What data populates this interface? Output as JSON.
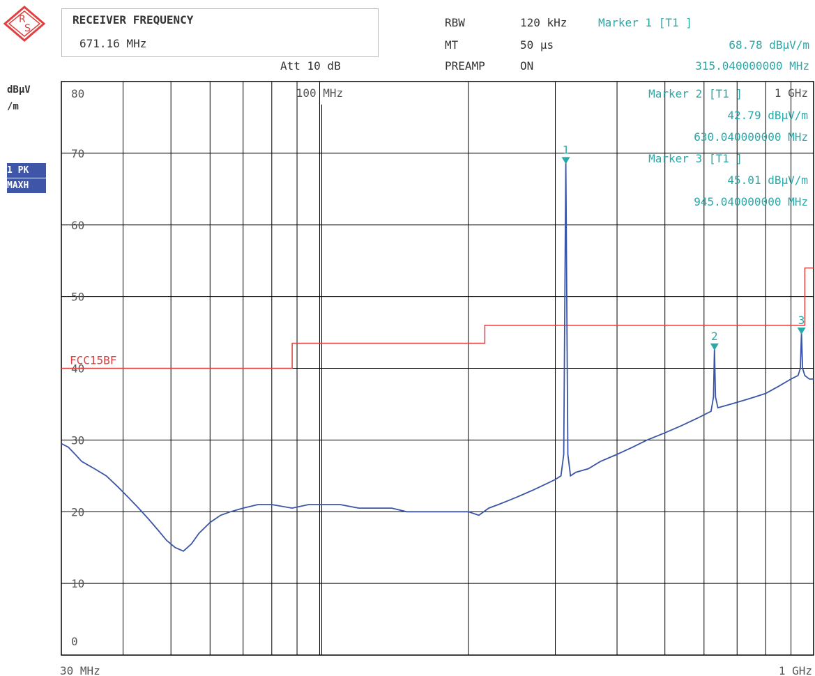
{
  "header": {
    "receiver_title": "RECEIVER FREQUENCY",
    "receiver_value": "671.16 MHz",
    "att": "Att 10 dB",
    "rbw_label": "RBW",
    "rbw_value": "120 kHz",
    "mt_label": "MT",
    "mt_value": "50 µs",
    "preamp_label": "PREAMP",
    "preamp_value": "ON",
    "marker1_title": "Marker 1 [T1 ]",
    "marker1_level": "68.78 dBµV/m",
    "marker1_freq": "315.040000000 MHz"
  },
  "side": {
    "unit_line1": "dBµV",
    "unit_line2": "/m",
    "trace_badge1": "1 PK",
    "trace_badge2": "MAXH"
  },
  "colors": {
    "trace": "#3a55a8",
    "limit": "#e04040",
    "marker": "#2aa8a8",
    "grid": "#000000",
    "logo": "#e04040"
  },
  "icons": {
    "logo": "rohde-schwarz-logo-icon"
  },
  "chart_data": {
    "type": "line",
    "x_scale": "log",
    "xlim_mhz": [
      30,
      1000
    ],
    "ylim": [
      0,
      80
    ],
    "yticks": [
      0,
      10,
      20,
      30,
      40,
      50,
      60,
      70,
      80
    ],
    "x_start_label": "30 MHz",
    "x_end_label": "1 GHz",
    "x_inner_labels": [
      "100 MHz",
      "1 GHz"
    ],
    "legend_markers": [
      {
        "title": "Marker 2 [T1 ]",
        "level": "42.79 dBµV/m",
        "freq": "630.040000000 MHz"
      },
      {
        "title": "Marker 3 [T1 ]",
        "level": "45.01 dBµV/m",
        "freq": "945.040000000 MHz"
      }
    ],
    "limit_line": {
      "name": "FCC15BF",
      "steps": [
        {
          "from_mhz": 30,
          "to_mhz": 88,
          "level": 40
        },
        {
          "from_mhz": 88,
          "to_mhz": 216,
          "level": 43.5
        },
        {
          "from_mhz": 216,
          "to_mhz": 960,
          "level": 46
        },
        {
          "from_mhz": 960,
          "to_mhz": 1000,
          "level": 54
        }
      ]
    },
    "markers": [
      {
        "id": "1",
        "freq_mhz": 315.04,
        "level": 68.78
      },
      {
        "id": "2",
        "freq_mhz": 630.04,
        "level": 42.79
      },
      {
        "id": "3",
        "freq_mhz": 945.04,
        "level": 45.01
      }
    ],
    "series": [
      {
        "points": [
          [
            30,
            29.5
          ],
          [
            31,
            29
          ],
          [
            32,
            28
          ],
          [
            33,
            27
          ],
          [
            35,
            26
          ],
          [
            37,
            25
          ],
          [
            39,
            23.5
          ],
          [
            41,
            22
          ],
          [
            43,
            20.5
          ],
          [
            45,
            19
          ],
          [
            47,
            17.5
          ],
          [
            49,
            16
          ],
          [
            51,
            15
          ],
          [
            53,
            14.5
          ],
          [
            55,
            15.5
          ],
          [
            57,
            17
          ],
          [
            60,
            18.5
          ],
          [
            63,
            19.5
          ],
          [
            66,
            20
          ],
          [
            70,
            20.5
          ],
          [
            75,
            21
          ],
          [
            80,
            21
          ],
          [
            88,
            20.5
          ],
          [
            95,
            21
          ],
          [
            100,
            21
          ],
          [
            110,
            21
          ],
          [
            120,
            20.5
          ],
          [
            130,
            20.5
          ],
          [
            140,
            20.5
          ],
          [
            150,
            20
          ],
          [
            160,
            20
          ],
          [
            170,
            20
          ],
          [
            180,
            20
          ],
          [
            190,
            20
          ],
          [
            200,
            20
          ],
          [
            210,
            19.5
          ],
          [
            220,
            20.5
          ],
          [
            230,
            21
          ],
          [
            240,
            21.5
          ],
          [
            250,
            22
          ],
          [
            260,
            22.5
          ],
          [
            270,
            23
          ],
          [
            280,
            23.5
          ],
          [
            290,
            24
          ],
          [
            300,
            24.5
          ],
          [
            308,
            25
          ],
          [
            312,
            28
          ],
          [
            315.04,
            68.78
          ],
          [
            318,
            28
          ],
          [
            322,
            25
          ],
          [
            330,
            25.5
          ],
          [
            350,
            26
          ],
          [
            370,
            27
          ],
          [
            400,
            28
          ],
          [
            430,
            29
          ],
          [
            460,
            30
          ],
          [
            500,
            31
          ],
          [
            540,
            32
          ],
          [
            580,
            33
          ],
          [
            620,
            34
          ],
          [
            627,
            36
          ],
          [
            630.04,
            42.79
          ],
          [
            633,
            36
          ],
          [
            640,
            34.5
          ],
          [
            680,
            35
          ],
          [
            720,
            35.5
          ],
          [
            760,
            36
          ],
          [
            800,
            36.5
          ],
          [
            850,
            37.5
          ],
          [
            900,
            38.5
          ],
          [
            930,
            39
          ],
          [
            940,
            40
          ],
          [
            945.04,
            45.01
          ],
          [
            950,
            40
          ],
          [
            960,
            39
          ],
          [
            980,
            38.5
          ],
          [
            1000,
            38.5
          ]
        ]
      }
    ]
  }
}
